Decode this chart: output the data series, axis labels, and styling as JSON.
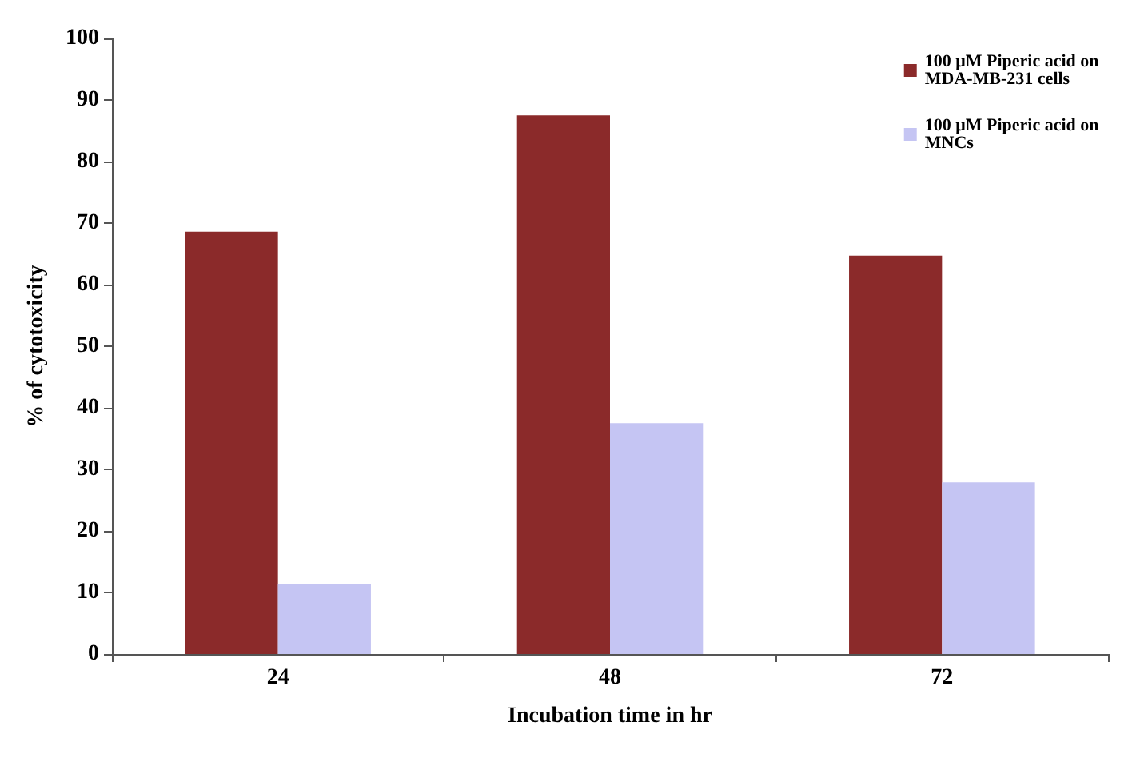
{
  "chart_data": {
    "type": "bar",
    "xlabel": "Incubation time in hr",
    "ylabel": "% of cytotoxicity",
    "categories": [
      "24",
      "48",
      "72"
    ],
    "series": [
      {
        "name": "100 μM Piperic acid on MDA-MB-231 cells",
        "color": "#8b2a2a",
        "values": [
          68.6,
          87.5,
          64.7
        ]
      },
      {
        "name": "100 μM Piperic acid on MNCs",
        "color": "#c5c5f3",
        "values": [
          11.3,
          37.5,
          27.9
        ]
      }
    ],
    "ylim": [
      0,
      100
    ],
    "yticks": [
      0,
      10,
      20,
      30,
      40,
      50,
      60,
      70,
      80,
      90,
      100
    ],
    "grid": false,
    "legend": "top right"
  }
}
